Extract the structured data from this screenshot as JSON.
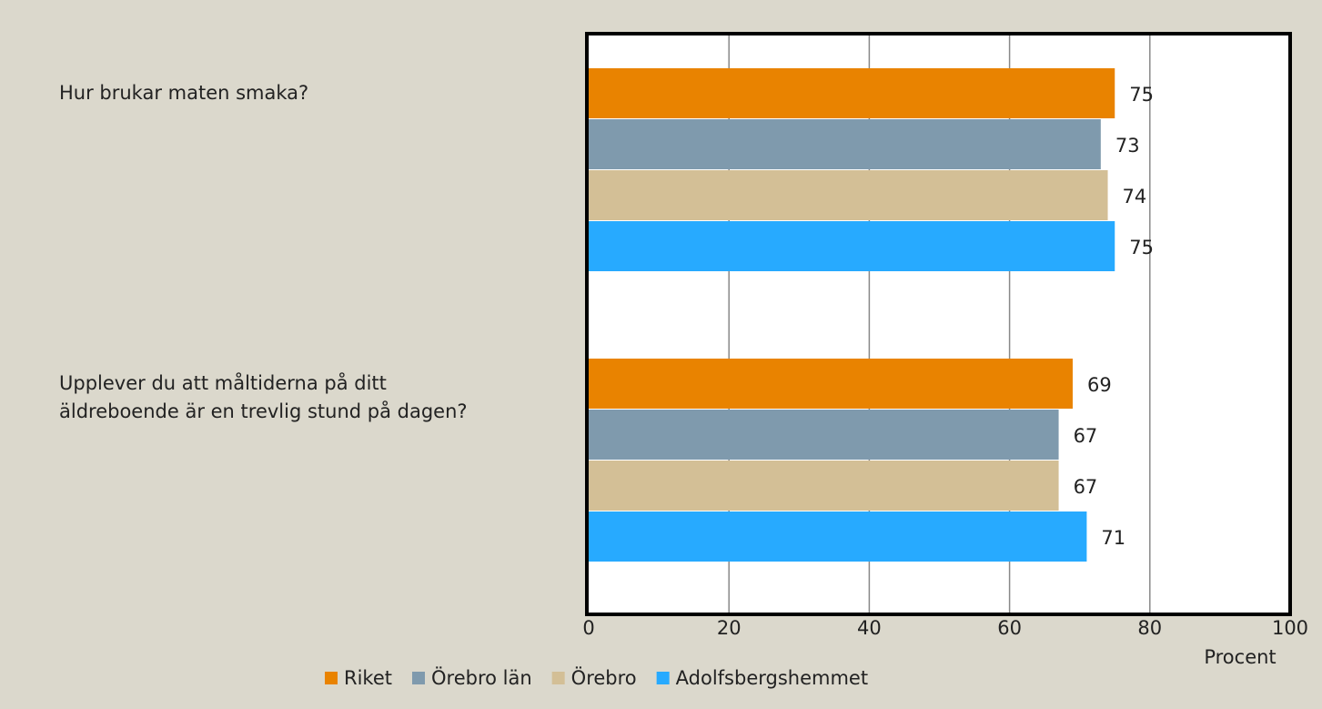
{
  "chart_data": {
    "type": "hbar",
    "categories": [
      "Hur brukar maten smaka?",
      "Upplever du att måltiderna på ditt äldreboende är en trevlig stund på dagen?"
    ],
    "series": [
      {
        "name": "Riket",
        "color": "#e98300",
        "values": [
          75,
          69
        ]
      },
      {
        "name": "Örebro län",
        "color": "#7f9aad",
        "values": [
          73,
          67
        ]
      },
      {
        "name": "Örebro",
        "color": "#d3bf96",
        "values": [
          74,
          67
        ]
      },
      {
        "name": "Adolfsbergshemmet",
        "color": "#27aaff",
        "values": [
          75,
          71
        ]
      }
    ],
    "xlabel": "Procent",
    "xlim": [
      0,
      100
    ],
    "xticks": [
      0,
      20,
      40,
      60,
      80,
      100
    ],
    "grid": true,
    "legend": "bottom"
  }
}
